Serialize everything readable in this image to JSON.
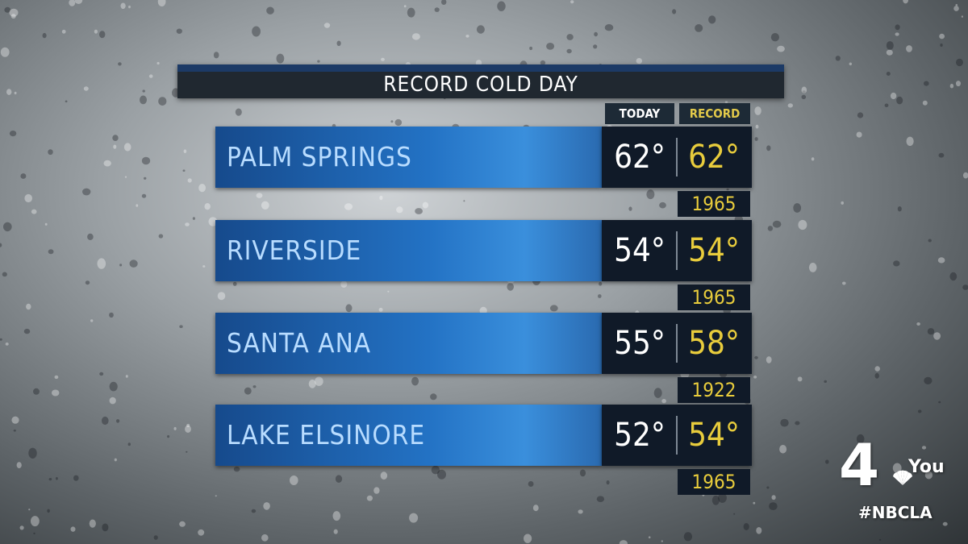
{
  "title": "RECORD COLD DAY",
  "columns": {
    "today": "TODAY",
    "record": "RECORD"
  },
  "rows": [
    {
      "city": "PALM SPRINGS",
      "today": "62°",
      "record": "62°",
      "year": "1965"
    },
    {
      "city": "RIVERSIDE",
      "today": "54°",
      "record": "54°",
      "year": "1965"
    },
    {
      "city": "SANTA ANA",
      "today": "55°",
      "record": "58°",
      "year": "1922"
    },
    {
      "city": "LAKE ELSINORE",
      "today": "52°",
      "record": "54°",
      "year": "1965"
    }
  ],
  "logo": {
    "number": "4",
    "text": "You"
  },
  "hashtag": "#NBCLA",
  "colors": {
    "accent_blue": "#2372c4",
    "record_gold": "#e8cc3c",
    "panel_dark": "#101a28"
  }
}
